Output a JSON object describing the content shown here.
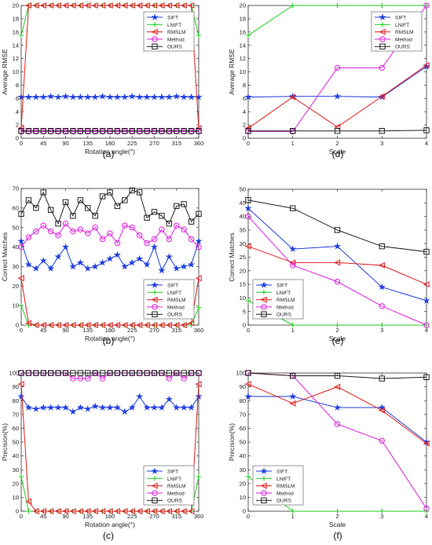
{
  "colors": {
    "sift": "#1f3fe0",
    "lnift": "#22cc22",
    "rmslm": "#e02020",
    "method": "#e020e0",
    "ours": "#222222"
  },
  "legend_labels": [
    "SIFT",
    "LNIFT",
    "RMSLM",
    "Method",
    "OURS"
  ],
  "chart_data": [
    {
      "id": "a",
      "panel_label": "(a)",
      "type": "line",
      "xlabel": "Rotation angle(°)",
      "ylabel": "Average RMSE",
      "xlim": [
        0,
        360
      ],
      "ylim": [
        0,
        20
      ],
      "xticks": [
        0,
        45,
        90,
        135,
        180,
        225,
        270,
        315,
        360
      ],
      "yticks": [
        0,
        2,
        4,
        6,
        8,
        10,
        12,
        14,
        16,
        18,
        20
      ],
      "grid": false,
      "legend": "upper-right",
      "x": [
        0,
        15,
        30,
        45,
        60,
        75,
        90,
        105,
        120,
        135,
        150,
        165,
        180,
        195,
        210,
        225,
        240,
        255,
        270,
        285,
        300,
        315,
        330,
        345,
        360
      ],
      "series": [
        {
          "name": "SIFT",
          "values": [
            6.2,
            6.2,
            6.2,
            6.2,
            6.3,
            6.2,
            6.3,
            6.2,
            6.2,
            6.2,
            6.2,
            6.3,
            6.2,
            6.2,
            6.2,
            6.3,
            6.2,
            6.2,
            6.2,
            6.2,
            6.2,
            6.3,
            6.2,
            6.2,
            6.2
          ]
        },
        {
          "name": "LNIFT",
          "values": [
            15.5,
            20,
            20,
            20,
            20,
            20,
            20,
            20,
            20,
            20,
            20,
            20,
            20,
            20,
            20,
            20,
            20,
            20,
            20,
            20,
            20,
            20,
            20,
            20,
            15.5
          ]
        },
        {
          "name": "RMSLM",
          "values": [
            1.5,
            20,
            20,
            20,
            20,
            20,
            20,
            20,
            20,
            20,
            20,
            20,
            20,
            20,
            20,
            20,
            20,
            20,
            20,
            20,
            20,
            20,
            20,
            20,
            1.5
          ]
        },
        {
          "name": "Method",
          "values": [
            1,
            1,
            1,
            1,
            1,
            1,
            1,
            1,
            1,
            1,
            1,
            1,
            1,
            1,
            1,
            1,
            1,
            1,
            1,
            1,
            1,
            1,
            1,
            1,
            1
          ]
        },
        {
          "name": "OURS",
          "values": [
            1.1,
            1.1,
            1.1,
            1.1,
            1.1,
            1.1,
            1.1,
            1.1,
            1.1,
            1.1,
            1.1,
            1.1,
            1.1,
            1.1,
            1.1,
            1.1,
            1.1,
            1.1,
            1.1,
            1.1,
            1.1,
            1.1,
            1.1,
            1.1,
            1.1
          ]
        }
      ]
    },
    {
      "id": "b",
      "panel_label": "(b)",
      "type": "line",
      "xlabel": "Rotation angle(°)",
      "ylabel": "Correct Matches",
      "xlim": [
        0,
        360
      ],
      "ylim": [
        0,
        70
      ],
      "xticks": [
        0,
        45,
        90,
        135,
        180,
        225,
        270,
        315,
        360
      ],
      "yticks": [
        0,
        10,
        20,
        30,
        40,
        50,
        60,
        70
      ],
      "grid": false,
      "legend": "lower-right",
      "x": [
        0,
        15,
        30,
        45,
        60,
        75,
        90,
        105,
        120,
        135,
        150,
        165,
        180,
        195,
        210,
        225,
        240,
        255,
        270,
        285,
        300,
        315,
        330,
        345,
        360
      ],
      "series": [
        {
          "name": "SIFT",
          "values": [
            43,
            31,
            29,
            33,
            29,
            35,
            40,
            30,
            32,
            29,
            30,
            32,
            34,
            36,
            30,
            32,
            34,
            31,
            40,
            28,
            35,
            29,
            30,
            31,
            43
          ]
        },
        {
          "name": "LNIFT",
          "values": [
            10,
            0,
            0,
            0,
            0,
            0,
            0,
            0,
            0,
            0,
            0,
            0,
            0,
            0,
            0,
            0,
            0,
            0,
            0,
            0,
            0,
            0,
            0,
            0,
            9
          ]
        },
        {
          "name": "RMSLM",
          "values": [
            24,
            1,
            0,
            0,
            0,
            0,
            0,
            0,
            0,
            0,
            0,
            0,
            0,
            0,
            0,
            0,
            0,
            0,
            0,
            0,
            0,
            0,
            0,
            1,
            24
          ]
        },
        {
          "name": "Method",
          "values": [
            40,
            45,
            48,
            51,
            48,
            46,
            52,
            48,
            49,
            47,
            50,
            44,
            47,
            42,
            51,
            50,
            46,
            42,
            44,
            49,
            44,
            51,
            49,
            44,
            40
          ]
        },
        {
          "name": "OURS",
          "values": [
            57,
            64,
            60,
            68,
            59,
            52,
            63,
            56,
            64,
            60,
            56,
            66,
            68,
            61,
            64,
            69,
            68,
            55,
            58,
            56,
            52,
            61,
            62,
            53,
            57
          ]
        }
      ]
    },
    {
      "id": "c",
      "panel_label": "(c)",
      "type": "line",
      "xlabel": "Rotation angle(°)",
      "ylabel": "Precision(%)",
      "xlim": [
        0,
        360
      ],
      "ylim": [
        0,
        100
      ],
      "xticks": [
        0,
        45,
        90,
        135,
        180,
        225,
        270,
        315,
        360
      ],
      "yticks": [
        0,
        10,
        20,
        30,
        40,
        50,
        60,
        70,
        80,
        90,
        100
      ],
      "grid": false,
      "legend": "lower-right",
      "x": [
        0,
        15,
        30,
        45,
        60,
        75,
        90,
        105,
        120,
        135,
        150,
        165,
        180,
        195,
        210,
        225,
        240,
        255,
        270,
        285,
        300,
        315,
        330,
        345,
        360
      ],
      "series": [
        {
          "name": "SIFT",
          "values": [
            83,
            75,
            74,
            75,
            75,
            75,
            75,
            72,
            75,
            74,
            76,
            75,
            75,
            75,
            72,
            75,
            83,
            75,
            75,
            75,
            81,
            75,
            75,
            75,
            83
          ]
        },
        {
          "name": "LNIFT",
          "values": [
            25,
            0,
            0,
            0,
            0,
            0,
            0,
            0,
            0,
            0,
            0,
            0,
            0,
            0,
            0,
            0,
            0,
            0,
            0,
            0,
            0,
            0,
            0,
            0,
            25
          ]
        },
        {
          "name": "RMSLM",
          "values": [
            92,
            7,
            0,
            0,
            0,
            0,
            0,
            0,
            0,
            0,
            0,
            0,
            0,
            0,
            0,
            0,
            0,
            0,
            0,
            0,
            0,
            0,
            0,
            0,
            92
          ]
        },
        {
          "name": "Method",
          "values": [
            100,
            100,
            100,
            100,
            100,
            100,
            100,
            96,
            96,
            96,
            100,
            96,
            100,
            100,
            100,
            100,
            100,
            100,
            100,
            100,
            96,
            100,
            96,
            100,
            100
          ]
        },
        {
          "name": "OURS",
          "values": [
            100,
            100,
            100,
            100,
            100,
            100,
            100,
            100,
            100,
            100,
            100,
            100,
            100,
            100,
            100,
            100,
            100,
            100,
            100,
            100,
            100,
            100,
            100,
            100,
            100
          ]
        }
      ]
    },
    {
      "id": "d",
      "panel_label": "(d)",
      "type": "line",
      "xlabel": "Scale",
      "ylabel": "Average RMSE",
      "xlim": [
        0,
        4
      ],
      "ylim": [
        0,
        20
      ],
      "xticks": [
        0,
        1,
        2,
        3,
        4
      ],
      "yticks": [
        0,
        2,
        4,
        6,
        8,
        10,
        12,
        14,
        16,
        18,
        20
      ],
      "grid": false,
      "legend": "upper-right",
      "x": [
        0,
        1,
        2,
        3,
        4
      ],
      "series": [
        {
          "name": "SIFT",
          "values": [
            6.2,
            6.3,
            6.3,
            6.2,
            10.8
          ]
        },
        {
          "name": "LNIFT",
          "values": [
            15.5,
            20,
            20,
            20,
            20
          ]
        },
        {
          "name": "RMSLM",
          "values": [
            1.5,
            6.2,
            1.7,
            6.3,
            11
          ]
        },
        {
          "name": "Method",
          "values": [
            1,
            1,
            10.6,
            10.6,
            20
          ]
        },
        {
          "name": "OURS",
          "values": [
            1.1,
            1.1,
            1.1,
            1.1,
            1.2
          ]
        }
      ]
    },
    {
      "id": "e",
      "panel_label": "(e)",
      "type": "line",
      "xlabel": "Scale",
      "ylabel": "Correct Matches",
      "xlim": [
        0,
        4
      ],
      "ylim": [
        0,
        50
      ],
      "xticks": [
        0,
        1,
        2,
        3,
        4
      ],
      "yticks": [
        0,
        5,
        10,
        15,
        20,
        25,
        30,
        35,
        40,
        45,
        50
      ],
      "grid": false,
      "legend": "lower-left",
      "x": [
        0,
        1,
        2,
        3,
        4
      ],
      "series": [
        {
          "name": "SIFT",
          "values": [
            43,
            28,
            29,
            14,
            9
          ]
        },
        {
          "name": "LNIFT",
          "values": [
            9,
            0,
            0,
            0,
            0
          ]
        },
        {
          "name": "RMSLM",
          "values": [
            29,
            23,
            23,
            22,
            15
          ]
        },
        {
          "name": "Method",
          "values": [
            40,
            22,
            16,
            7,
            0
          ]
        },
        {
          "name": "OURS",
          "values": [
            46,
            43,
            35,
            29,
            27
          ]
        }
      ]
    },
    {
      "id": "f",
      "panel_label": "(f)",
      "type": "line",
      "xlabel": "Scale",
      "ylabel": "Precision(%)",
      "xlim": [
        0,
        4
      ],
      "ylim": [
        0,
        100
      ],
      "xticks": [
        0,
        1,
        2,
        3,
        4
      ],
      "yticks": [
        0,
        10,
        20,
        30,
        40,
        50,
        60,
        70,
        80,
        90,
        100
      ],
      "grid": false,
      "legend": "lower-left",
      "x": [
        0,
        1,
        2,
        3,
        4
      ],
      "series": [
        {
          "name": "SIFT",
          "values": [
            83,
            83,
            75,
            75,
            50
          ]
        },
        {
          "name": "LNIFT",
          "values": [
            25,
            0,
            0,
            0,
            0
          ]
        },
        {
          "name": "RMSLM",
          "values": [
            92,
            78,
            90,
            73,
            49
          ]
        },
        {
          "name": "Method",
          "values": [
            100,
            98,
            63,
            51,
            2
          ]
        },
        {
          "name": "OURS",
          "values": [
            100,
            98,
            98,
            96,
            97
          ]
        }
      ]
    }
  ]
}
